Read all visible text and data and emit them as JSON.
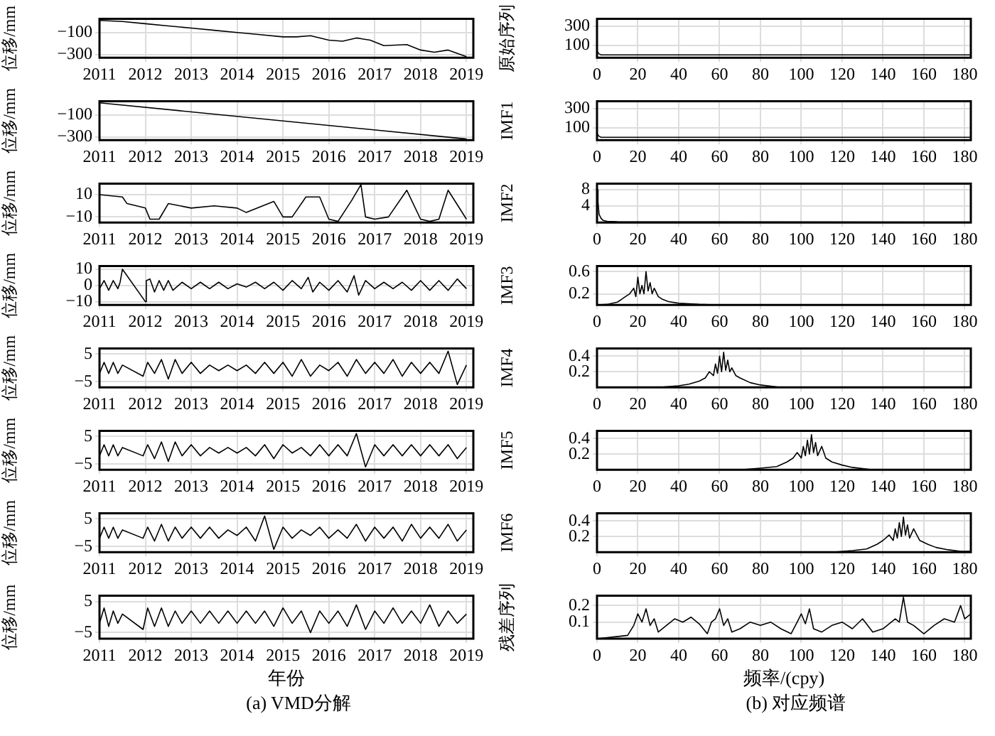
{
  "chart_data": [
    {
      "type": "line",
      "ylabel": "位移/mm",
      "xlim": [
        2011,
        2019.15
      ],
      "xticks": [
        2011,
        2012,
        2013,
        2014,
        2015,
        2016,
        2017,
        2018,
        2019
      ],
      "ylim": [
        -330,
        25
      ],
      "yticks": [
        -300,
        -100
      ],
      "grid": true,
      "marker": "none",
      "line_style": "solid",
      "series": [
        {
          "color": "#000000",
          "x": [
            2011,
            2011.5,
            2012,
            2012.5,
            2013,
            2013.5,
            2014,
            2014.5,
            2015,
            2015.3,
            2015.6,
            2016,
            2016.3,
            2016.6,
            2016.9,
            2017.2,
            2017.7,
            2018,
            2018.3,
            2018.6,
            2019
          ],
          "values": [
            10,
            0,
            -20,
            -40,
            -60,
            -80,
            -100,
            -120,
            -140,
            -140,
            -130,
            -170,
            -180,
            -150,
            -170,
            -220,
            -210,
            -260,
            -280,
            -260,
            -320
          ]
        }
      ]
    },
    {
      "type": "line",
      "ylabel": "位移/mm",
      "xlim": [
        2011,
        2019.15
      ],
      "xticks": [
        2011,
        2012,
        2013,
        2014,
        2015,
        2016,
        2017,
        2018,
        2019
      ],
      "ylim": [
        -330,
        25
      ],
      "yticks": [
        -300,
        -100
      ],
      "grid": true,
      "marker": "none",
      "line_style": "solid",
      "series": [
        {
          "color": "#000000",
          "x": [
            2011,
            2019
          ],
          "values": [
            10,
            -320
          ]
        }
      ]
    },
    {
      "type": "line",
      "ylabel": "位移/mm",
      "xlim": [
        2011,
        2019.15
      ],
      "xticks": [
        2011,
        2012,
        2013,
        2014,
        2015,
        2016,
        2017,
        2018,
        2019
      ],
      "ylim": [
        -15,
        20
      ],
      "yticks": [
        -10,
        10
      ],
      "grid": true,
      "marker": "none",
      "line_style": "solid",
      "series": [
        {
          "color": "#000000",
          "x": [
            2011,
            2011.5,
            2011.6,
            2012,
            2012.1,
            2012.3,
            2012.5,
            2013,
            2013.5,
            2014,
            2014.2,
            2014.8,
            2015,
            2015.2,
            2015.5,
            2015.8,
            2016,
            2016.2,
            2016.5,
            2016.7,
            2016.8,
            2017,
            2017.3,
            2017.7,
            2018,
            2018.2,
            2018.4,
            2018.6,
            2019
          ],
          "values": [
            10,
            8,
            2,
            -2,
            -12,
            -12,
            2,
            -2,
            0,
            -2,
            -6,
            4,
            -10,
            -10,
            8,
            8,
            -12,
            -14,
            5,
            19,
            -10,
            -12,
            -10,
            14,
            -12,
            -14,
            -12,
            14,
            -12
          ]
        }
      ]
    },
    {
      "type": "line",
      "ylabel": "位移/mm",
      "xlim": [
        2011,
        2019.15
      ],
      "xticks": [
        2011,
        2012,
        2013,
        2014,
        2015,
        2016,
        2017,
        2018,
        2019
      ],
      "ylim": [
        -12,
        12
      ],
      "yticks": [
        -10,
        0,
        10
      ],
      "grid": true,
      "marker": "none",
      "line_style": "solid",
      "series": [
        {
          "color": "#000000",
          "x": [
            2011,
            2011.1,
            2011.2,
            2011.3,
            2011.4,
            2011.45,
            2011.5,
            2011.55,
            2012,
            2012.02,
            2012.1,
            2012.2,
            2012.3,
            2012.4,
            2012.5,
            2012.6,
            2012.8,
            2013,
            2013.2,
            2013.4,
            2013.6,
            2013.8,
            2014,
            2014.2,
            2014.4,
            2014.6,
            2014.8,
            2015,
            2015.2,
            2015.4,
            2015.55,
            2015.65,
            2015.8,
            2016,
            2016.2,
            2016.4,
            2016.55,
            2016.65,
            2016.8,
            2017,
            2017.2,
            2017.4,
            2017.6,
            2017.8,
            2018,
            2018.2,
            2018.4,
            2018.6,
            2018.8,
            2019
          ],
          "values": [
            -2,
            3,
            -3,
            3,
            -2,
            2,
            10,
            8,
            -10,
            3,
            4,
            -4,
            3,
            -3,
            3,
            -3,
            2,
            -2,
            2,
            -2,
            2,
            -2,
            1,
            -1,
            2,
            -2,
            2,
            -3,
            3,
            -2,
            5,
            -4,
            2,
            -3,
            3,
            -4,
            6,
            -6,
            3,
            -2,
            2,
            -2,
            2,
            -3,
            3,
            -3,
            3,
            -3,
            4,
            -2
          ]
        }
      ]
    },
    {
      "type": "line",
      "ylabel": "位移/mm",
      "xlim": [
        2011,
        2019.15
      ],
      "xticks": [
        2011,
        2012,
        2013,
        2014,
        2015,
        2016,
        2017,
        2018,
        2019
      ],
      "ylim": [
        -7,
        7
      ],
      "yticks": [
        -5,
        5
      ],
      "grid": true,
      "marker": "none",
      "line_style": "solid",
      "series": [
        {
          "color": "#000000",
          "x": [
            2011,
            2011.1,
            2011.2,
            2011.3,
            2011.4,
            2011.5,
            2011.95,
            2012.05,
            2012.2,
            2012.35,
            2012.5,
            2012.65,
            2012.8,
            2013,
            2013.2,
            2013.4,
            2013.6,
            2013.8,
            2014,
            2014.2,
            2014.4,
            2014.6,
            2014.8,
            2015,
            2015.2,
            2015.4,
            2015.6,
            2015.8,
            2016,
            2016.2,
            2016.4,
            2016.6,
            2016.8,
            2017,
            2017.2,
            2017.4,
            2017.6,
            2017.8,
            2018,
            2018.2,
            2018.4,
            2018.6,
            2018.8,
            2019
          ],
          "values": [
            -2,
            2,
            -2,
            2,
            -2,
            1,
            -3,
            2,
            -2,
            3,
            -4,
            3,
            -2,
            2,
            -2,
            1,
            -1,
            1,
            -1,
            1,
            -2,
            2,
            -2,
            2,
            -3,
            3,
            -3,
            1,
            -1,
            2,
            -3,
            3,
            -2,
            2,
            -2,
            3,
            -3,
            2,
            -2,
            2,
            -2,
            6,
            -6,
            1
          ]
        }
      ]
    },
    {
      "type": "line",
      "ylabel": "位移/mm",
      "xlim": [
        2011,
        2019.15
      ],
      "xticks": [
        2011,
        2012,
        2013,
        2014,
        2015,
        2016,
        2017,
        2018,
        2019
      ],
      "ylim": [
        -7,
        7
      ],
      "yticks": [
        -5,
        5
      ],
      "grid": true,
      "marker": "none",
      "line_style": "solid",
      "series": [
        {
          "color": "#000000",
          "x": [
            2011,
            2011.1,
            2011.2,
            2011.3,
            2011.4,
            2011.5,
            2011.95,
            2012.05,
            2012.2,
            2012.35,
            2012.5,
            2012.65,
            2012.8,
            2013,
            2013.2,
            2013.4,
            2013.6,
            2013.8,
            2014,
            2014.2,
            2014.4,
            2014.6,
            2014.8,
            2015,
            2015.2,
            2015.4,
            2015.6,
            2015.8,
            2016,
            2016.2,
            2016.4,
            2016.6,
            2016.8,
            2017,
            2017.2,
            2017.4,
            2017.6,
            2017.8,
            2018,
            2018.2,
            2018.4,
            2018.6,
            2018.8,
            2019
          ],
          "values": [
            -2,
            2,
            -2,
            2,
            -2,
            1,
            -2,
            2,
            -3,
            3,
            -4,
            3,
            -2,
            2,
            -2,
            1,
            -1,
            1,
            -1,
            1,
            -2,
            2,
            -3,
            2,
            -1,
            1,
            -2,
            2,
            -2,
            2,
            -2,
            6,
            -6,
            2,
            -2,
            2,
            -2,
            2,
            -2,
            2,
            -2,
            2,
            -3,
            1
          ]
        }
      ]
    },
    {
      "type": "line",
      "ylabel": "位移/mm",
      "xlim": [
        2011,
        2019.15
      ],
      "xticks": [
        2011,
        2012,
        2013,
        2014,
        2015,
        2016,
        2017,
        2018,
        2019
      ],
      "ylim": [
        -7,
        7
      ],
      "yticks": [
        -5,
        5
      ],
      "grid": true,
      "marker": "none",
      "line_style": "solid",
      "series": [
        {
          "color": "#000000",
          "x": [
            2011,
            2011.1,
            2011.2,
            2011.3,
            2011.4,
            2011.5,
            2011.95,
            2012.05,
            2012.2,
            2012.35,
            2012.5,
            2012.65,
            2012.8,
            2013,
            2013.2,
            2013.4,
            2013.6,
            2013.8,
            2014,
            2014.2,
            2014.4,
            2014.6,
            2014.8,
            2015,
            2015.2,
            2015.4,
            2015.6,
            2015.8,
            2016,
            2016.2,
            2016.4,
            2016.6,
            2016.8,
            2017,
            2017.2,
            2017.4,
            2017.6,
            2017.8,
            2018,
            2018.2,
            2018.4,
            2018.6,
            2018.8,
            2019
          ],
          "values": [
            -2,
            2,
            -2,
            2,
            -2,
            1,
            -2,
            2,
            -3,
            3,
            -3,
            2,
            -2,
            2,
            -2,
            2,
            -2,
            1,
            -1,
            2,
            -3,
            6,
            -6,
            2,
            -2,
            1,
            -1,
            2,
            -2,
            1,
            -2,
            3,
            -3,
            2,
            -2,
            2,
            -3,
            3,
            -2,
            2,
            -2,
            3,
            -3,
            1
          ]
        }
      ]
    },
    {
      "type": "line",
      "ylabel": "位移/mm",
      "xlabel": "年份",
      "annotations": [
        "(a) VMD分解"
      ],
      "xlim": [
        2011,
        2019.15
      ],
      "xticks": [
        2011,
        2012,
        2013,
        2014,
        2015,
        2016,
        2017,
        2018,
        2019
      ],
      "ylim": [
        -7,
        7
      ],
      "yticks": [
        -5,
        5
      ],
      "grid": true,
      "marker": "none",
      "line_style": "solid",
      "series": [
        {
          "color": "#000000",
          "x": [
            2011,
            2011.1,
            2011.2,
            2011.3,
            2011.4,
            2011.5,
            2011.95,
            2012.05,
            2012.2,
            2012.35,
            2012.5,
            2012.65,
            2012.8,
            2013,
            2013.2,
            2013.4,
            2013.6,
            2013.8,
            2014,
            2014.2,
            2014.4,
            2014.6,
            2014.8,
            2015,
            2015.2,
            2015.4,
            2015.6,
            2015.8,
            2016,
            2016.2,
            2016.4,
            2016.6,
            2016.8,
            2017,
            2017.2,
            2017.4,
            2017.6,
            2017.8,
            2018,
            2018.2,
            2018.4,
            2018.6,
            2018.8,
            2019
          ],
          "values": [
            -2,
            3,
            -3,
            2,
            -2,
            1,
            -4,
            3,
            -3,
            3,
            -3,
            2,
            -2,
            2,
            -2,
            2,
            -2,
            2,
            -2,
            2,
            -2,
            2,
            -3,
            3,
            -2,
            2,
            -5,
            2,
            -2,
            2,
            -3,
            4,
            -4,
            2,
            -2,
            3,
            -2,
            2,
            -2,
            4,
            -3,
            2,
            -2,
            1
          ]
        }
      ]
    },
    {
      "type": "line",
      "ylabel": "原始序列",
      "xlim": [
        0,
        183
      ],
      "xticks": [
        0,
        20,
        40,
        60,
        80,
        100,
        120,
        140,
        160,
        180
      ],
      "ylim": [
        -30,
        380
      ],
      "yticks": [
        100,
        300
      ],
      "grid": true,
      "marker": "none",
      "line_style": "solid",
      "series": [
        {
          "color": "#000000",
          "x": [
            0,
            1,
            2,
            183
          ],
          "values": [
            40,
            10,
            0,
            0
          ]
        }
      ]
    },
    {
      "type": "line",
      "ylabel": "IMF1",
      "xlim": [
        0,
        183
      ],
      "xticks": [
        0,
        20,
        40,
        60,
        80,
        100,
        120,
        140,
        160,
        180
      ],
      "ylim": [
        -30,
        380
      ],
      "yticks": [
        100,
        300
      ],
      "grid": true,
      "marker": "none",
      "line_style": "solid",
      "series": [
        {
          "color": "#000000",
          "x": [
            0,
            1,
            2,
            183
          ],
          "values": [
            40,
            10,
            0,
            0
          ]
        }
      ]
    },
    {
      "type": "line",
      "ylabel": "IMF2",
      "xlim": [
        0,
        183
      ],
      "xticks": [
        0,
        20,
        40,
        60,
        80,
        100,
        120,
        140,
        160,
        180
      ],
      "ylim": [
        0,
        9.5
      ],
      "yticks": [
        4,
        8
      ],
      "grid": true,
      "marker": "none",
      "line_style": "solid",
      "series": [
        {
          "color": "#000000",
          "x": [
            0,
            0.5,
            1,
            2,
            3,
            5,
            10,
            183
          ],
          "values": [
            8,
            5,
            2,
            1,
            0.5,
            0.3,
            0.2,
            0.1
          ]
        }
      ]
    },
    {
      "type": "line",
      "ylabel": "IMF3",
      "xlim": [
        0,
        183
      ],
      "xticks": [
        0,
        20,
        40,
        60,
        80,
        100,
        120,
        140,
        160,
        180
      ],
      "ylim": [
        0,
        0.7
      ],
      "yticks": [
        0.2,
        0.6
      ],
      "grid": true,
      "marker": "none",
      "line_style": "solid",
      "series": [
        {
          "color": "#000000",
          "x": [
            0,
            5,
            10,
            12,
            14,
            16,
            18,
            19,
            20,
            21,
            22,
            23,
            24,
            25,
            26,
            27,
            28,
            30,
            32,
            35,
            40,
            50,
            60,
            183
          ],
          "values": [
            0,
            0.01,
            0.05,
            0.1,
            0.15,
            0.2,
            0.3,
            0.15,
            0.5,
            0.2,
            0.35,
            0.2,
            0.6,
            0.25,
            0.4,
            0.2,
            0.3,
            0.15,
            0.1,
            0.06,
            0.03,
            0.01,
            0,
            0
          ]
        }
      ]
    },
    {
      "type": "line",
      "ylabel": "IMF4",
      "xlim": [
        0,
        183
      ],
      "xticks": [
        0,
        20,
        40,
        60,
        80,
        100,
        120,
        140,
        160,
        180
      ],
      "ylim": [
        0,
        0.5
      ],
      "yticks": [
        0.2,
        0.4
      ],
      "grid": true,
      "marker": "none",
      "line_style": "solid",
      "series": [
        {
          "color": "#000000",
          "x": [
            0,
            30,
            40,
            45,
            50,
            53,
            55,
            57,
            58,
            59,
            60,
            61,
            62,
            63,
            64,
            65,
            66,
            68,
            70,
            75,
            80,
            90,
            183
          ],
          "values": [
            0,
            0,
            0.02,
            0.04,
            0.08,
            0.12,
            0.2,
            0.15,
            0.3,
            0.18,
            0.4,
            0.2,
            0.45,
            0.22,
            0.35,
            0.2,
            0.25,
            0.15,
            0.12,
            0.06,
            0.03,
            0,
            0
          ]
        }
      ]
    },
    {
      "type": "line",
      "ylabel": "IMF5",
      "xlim": [
        0,
        183
      ],
      "xticks": [
        0,
        20,
        40,
        60,
        80,
        100,
        120,
        140,
        160,
        180
      ],
      "ylim": [
        0,
        0.5
      ],
      "yticks": [
        0.2,
        0.4
      ],
      "grid": true,
      "marker": "none",
      "line_style": "solid",
      "series": [
        {
          "color": "#000000",
          "x": [
            0,
            70,
            80,
            88,
            93,
            96,
            98,
            100,
            101,
            102,
            103,
            104,
            105,
            106,
            107,
            108,
            110,
            112,
            115,
            120,
            125,
            135,
            183
          ],
          "values": [
            0,
            0,
            0.02,
            0.04,
            0.1,
            0.15,
            0.22,
            0.15,
            0.3,
            0.18,
            0.38,
            0.2,
            0.45,
            0.22,
            0.35,
            0.18,
            0.3,
            0.15,
            0.1,
            0.06,
            0.03,
            0,
            0
          ]
        }
      ]
    },
    {
      "type": "line",
      "ylabel": "IMF6",
      "xlim": [
        0,
        183
      ],
      "xticks": [
        0,
        20,
        40,
        60,
        80,
        100,
        120,
        140,
        160,
        180
      ],
      "ylim": [
        0,
        0.5
      ],
      "yticks": [
        0.2,
        0.4
      ],
      "grid": true,
      "marker": "none",
      "line_style": "solid",
      "series": [
        {
          "color": "#000000",
          "x": [
            0,
            115,
            125,
            132,
            137,
            140,
            143,
            145,
            146,
            147,
            148,
            149,
            150,
            151,
            152,
            153,
            155,
            158,
            162,
            166,
            172,
            178,
            183
          ],
          "values": [
            0,
            0,
            0.02,
            0.04,
            0.1,
            0.15,
            0.22,
            0.15,
            0.3,
            0.18,
            0.38,
            0.2,
            0.45,
            0.22,
            0.35,
            0.18,
            0.3,
            0.15,
            0.1,
            0.06,
            0.03,
            0.01,
            0.01
          ]
        }
      ]
    },
    {
      "type": "line",
      "ylabel": "残差序列",
      "xlabel": "频率/(cpy)",
      "annotations": [
        "(b) 对应频谱"
      ],
      "xlim": [
        0,
        183
      ],
      "xticks": [
        0,
        20,
        40,
        60,
        80,
        100,
        120,
        140,
        160,
        180
      ],
      "ylim": [
        0,
        0.26
      ],
      "yticks": [
        0.1,
        0.2
      ],
      "grid": true,
      "marker": "none",
      "line_style": "solid",
      "series": [
        {
          "color": "#000000",
          "x": [
            0,
            8,
            15,
            18,
            20,
            22,
            24,
            26,
            28,
            30,
            34,
            38,
            42,
            46,
            50,
            54,
            56,
            58,
            60,
            62,
            64,
            66,
            70,
            75,
            80,
            85,
            90,
            95,
            98,
            100,
            102,
            104,
            106,
            110,
            115,
            120,
            125,
            130,
            135,
            140,
            146,
            148,
            150,
            152,
            155,
            160,
            165,
            170,
            175,
            178,
            180,
            183
          ],
          "values": [
            0,
            0.01,
            0.02,
            0.08,
            0.15,
            0.1,
            0.18,
            0.08,
            0.12,
            0.04,
            0.08,
            0.12,
            0.1,
            0.13,
            0.09,
            0.03,
            0.1,
            0.12,
            0.18,
            0.08,
            0.12,
            0.04,
            0.06,
            0.1,
            0.08,
            0.1,
            0.06,
            0.03,
            0.1,
            0.15,
            0.09,
            0.18,
            0.06,
            0.04,
            0.08,
            0.1,
            0.06,
            0.12,
            0.04,
            0.06,
            0.12,
            0.1,
            0.25,
            0.1,
            0.08,
            0.03,
            0.08,
            0.12,
            0.1,
            0.2,
            0.12,
            0.15
          ]
        }
      ]
    }
  ]
}
